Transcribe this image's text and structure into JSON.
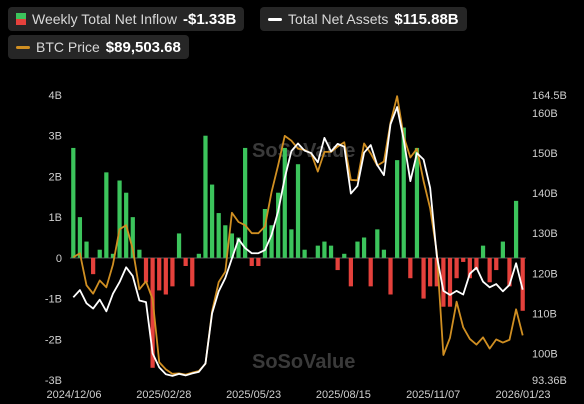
{
  "legend": {
    "inflow_label": "Weekly Total Net Inflow",
    "inflow_value": "-$1.33B",
    "assets_label": "Total Net Assets",
    "assets_value": "$115.88B",
    "btc_label": "BTC Price",
    "btc_value": "$89,503.68"
  },
  "watermark": "SoSoValue",
  "colors": {
    "positive": "#3cc45c",
    "negative": "#e5413c",
    "assets_line": "#ffffff",
    "btc_line": "#d08f22",
    "background": "#000000",
    "zero_line": "#5a5a5a"
  },
  "chart_data": {
    "type": "bar+line",
    "title": "",
    "x_tick_labels": [
      "2024/12/06",
      "2025/02/28",
      "2025/05/23",
      "2025/08/15",
      "2025/11/07",
      "2026/01/23"
    ],
    "left_axis": {
      "ticks": [
        "4B",
        "3B",
        "2B",
        "1B",
        "0",
        "-1B",
        "-2B",
        "-3B"
      ],
      "ylim": [
        -3,
        4
      ],
      "unit": "B"
    },
    "right_axis": {
      "ticks": [
        "164.5B",
        "160B",
        "150B",
        "140B",
        "130B",
        "120B",
        "110B",
        "100B",
        "93.36B"
      ],
      "ylim": [
        93.36,
        164.5
      ],
      "unit": "B"
    },
    "series": [
      {
        "name": "Weekly Total Net Inflow",
        "kind": "bar",
        "axis": "left",
        "values": [
          2.7,
          1.0,
          0.4,
          -0.4,
          0.2,
          2.1,
          0.1,
          1.9,
          1.6,
          1.0,
          0.2,
          -0.6,
          -2.7,
          -0.8,
          -0.9,
          -0.7,
          0.6,
          -0.2,
          -0.7,
          0.1,
          3.0,
          1.8,
          1.1,
          0.8,
          0.6,
          0.5,
          2.7,
          -0.2,
          -0.2,
          1.2,
          0.8,
          1.6,
          2.7,
          0.7,
          2.3,
          0.2,
          0.0,
          0.3,
          0.4,
          0.3,
          -0.3,
          0.1,
          -0.7,
          0.4,
          0.5,
          -0.7,
          0.7,
          0.2,
          -0.9,
          2.4,
          3.2,
          -0.5,
          2.7,
          -1.0,
          -0.7,
          -0.7,
          -1.2,
          -1.2,
          -0.5,
          -0.1,
          -0.5,
          -0.3,
          0.3,
          -0.6,
          -0.3,
          0.4,
          -0.7,
          1.4,
          -1.3
        ]
      },
      {
        "name": "Total Net Assets",
        "kind": "line",
        "axis": "right",
        "values": [
          114.0,
          115.8,
          112.5,
          111.2,
          113.4,
          110.5,
          114.9,
          117.8,
          121.5,
          119.3,
          113.2,
          112.8,
          100.0,
          96.5,
          94.8,
          94.4,
          94.9,
          94.5,
          95.0,
          95.4,
          97.5,
          110.0,
          115.5,
          118.8,
          123.7,
          128.5,
          126.3,
          125.0,
          125.0,
          125.8,
          129.6,
          135.5,
          143.8,
          150.5,
          152.4,
          150.6,
          150.0,
          147.7,
          153.8,
          150.4,
          152.3,
          151.6,
          139.9,
          141.8,
          150.1,
          152.0,
          147.0,
          144.5,
          157.2,
          161.5,
          153.3,
          143.0,
          150.0,
          148.4,
          141.3,
          124.4,
          115.6,
          114.6,
          115.6,
          114.7,
          119.9,
          121.4,
          117.9,
          116.5,
          117.3,
          115.5,
          117.1,
          122.5,
          115.9
        ]
      },
      {
        "name": "BTC Price",
        "kind": "line",
        "axis": "right",
        "values": [
          124.0,
          125.0,
          117.0,
          114.9,
          118.2,
          116.5,
          122.2,
          131.0,
          132.0,
          126.0,
          116.0,
          118.0,
          113.5,
          97.8,
          96.0,
          94.9,
          95.0,
          94.7,
          95.2,
          95.6,
          97.4,
          110.5,
          117.8,
          120.4,
          135.1,
          132.8,
          132.0,
          130.0,
          130.0,
          131.7,
          140.3,
          147.0,
          154.3,
          153.1,
          151.1,
          150.8,
          149.9,
          145.4,
          150.3,
          150.3,
          151.6,
          152.7,
          143.3,
          143.2,
          152.4,
          149.9,
          146.9,
          147.9,
          157.6,
          164.2,
          154.1,
          148.9,
          151.1,
          143.0,
          136.2,
          125.3,
          99.6,
          103.9,
          112.9,
          106.5,
          103.6,
          102.2,
          104.0,
          101.2,
          103.5,
          102.7,
          103.4,
          111.0,
          104.5
        ]
      }
    ]
  }
}
